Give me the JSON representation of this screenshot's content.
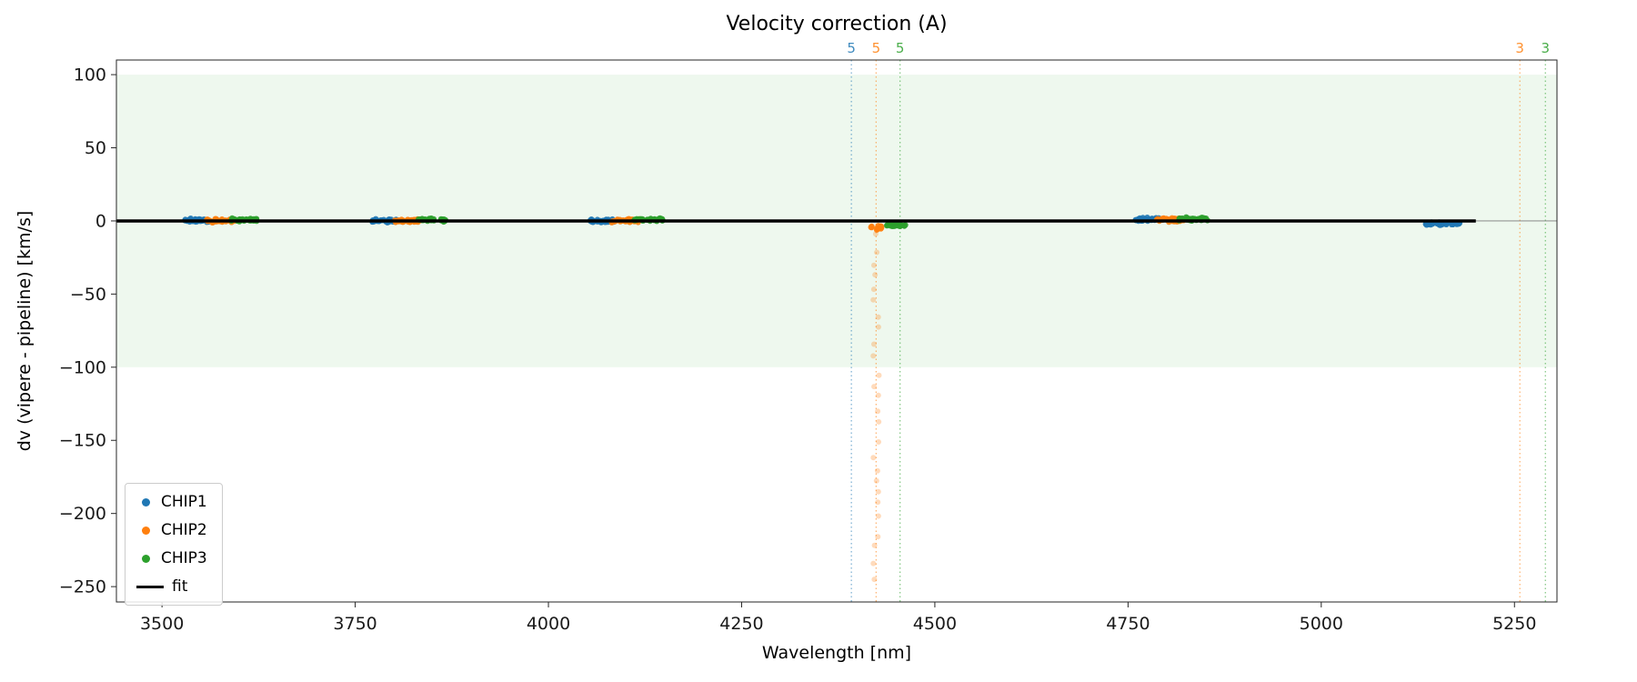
{
  "chart_data": {
    "type": "scatter",
    "title": "Velocity correction (A)",
    "xlabel": "Wavelength [nm]",
    "ylabel": "dv (vipere - pipeline) [km/s]",
    "xlim": [
      3441,
      5305
    ],
    "ylim": [
      -260.5,
      110
    ],
    "xticks": [
      3500,
      3750,
      4000,
      4250,
      4500,
      4750,
      5000,
      5250
    ],
    "yticks": [
      100,
      50,
      0,
      -50,
      -100,
      -150,
      -200,
      -250
    ],
    "grid": false,
    "legend_position": "lower left",
    "band": {
      "ymin": -100,
      "ymax": 100,
      "color": "rgba(44,160,44,0.08)"
    },
    "zero_line": {
      "y": 0,
      "color": "#7a7a7a",
      "width": 0.9
    },
    "fit_line": {
      "label": "fit",
      "y": 0,
      "color": "#000000",
      "width": 3.5,
      "x_from": 3441,
      "x_to": 5200
    },
    "series": [
      {
        "name": "CHIP1",
        "color": "#1f77b4",
        "clusters": [
          {
            "x0": 3528,
            "x1": 3562,
            "y": 0.4,
            "spread": 1.4,
            "n": 40
          },
          {
            "x0": 3772,
            "x1": 3806,
            "y": 0.2,
            "spread": 1.4,
            "n": 40
          },
          {
            "x0": 4054,
            "x1": 4088,
            "y": 0.0,
            "spread": 1.4,
            "n": 40
          },
          {
            "x0": 4758,
            "x1": 4792,
            "y": 1.0,
            "spread": 1.5,
            "n": 40
          },
          {
            "x0": 5130,
            "x1": 5180,
            "y": -1.8,
            "spread": 1.3,
            "n": 48
          }
        ]
      },
      {
        "name": "CHIP2",
        "color": "#ff7f0e",
        "clusters": [
          {
            "x0": 3556,
            "x1": 3594,
            "y": 0.2,
            "spread": 1.5,
            "n": 40
          },
          {
            "x0": 3801,
            "x1": 3838,
            "y": 0.0,
            "spread": 1.4,
            "n": 40
          },
          {
            "x0": 4082,
            "x1": 4118,
            "y": 0.2,
            "spread": 1.4,
            "n": 40
          },
          {
            "x0": 4417,
            "x1": 4431,
            "y": -5.0,
            "spread": 2.5,
            "n": 14
          },
          {
            "x0": 4786,
            "x1": 4822,
            "y": 0.6,
            "spread": 1.5,
            "n": 40
          }
        ]
      },
      {
        "name": "CHIP3",
        "color": "#2ca02c",
        "clusters": [
          {
            "x0": 3588,
            "x1": 3624,
            "y": 0.8,
            "spread": 1.3,
            "n": 40
          },
          {
            "x0": 3831,
            "x1": 3868,
            "y": 0.6,
            "spread": 1.3,
            "n": 40
          },
          {
            "x0": 4110,
            "x1": 4148,
            "y": 0.9,
            "spread": 1.3,
            "n": 40
          },
          {
            "x0": 4438,
            "x1": 4462,
            "y": -2.8,
            "spread": 1.2,
            "n": 30
          },
          {
            "x0": 4816,
            "x1": 4854,
            "y": 1.3,
            "spread": 1.4,
            "n": 40
          }
        ]
      }
    ],
    "outlier_column": {
      "series": "CHIP2",
      "color": "#ff7f0e",
      "x": 4424,
      "x_jitter": 4,
      "y_top": -10,
      "y_bottom": -242,
      "n": 26,
      "opacity": 0.28
    },
    "vlines": [
      {
        "x": 4392,
        "color": "#1f77b4",
        "label": "5"
      },
      {
        "x": 4424,
        "color": "#ff7f0e",
        "label": "5"
      },
      {
        "x": 4455,
        "color": "#2ca02c",
        "label": "5"
      },
      {
        "x": 5257,
        "color": "#ff7f0e",
        "label": "3"
      },
      {
        "x": 5290,
        "color": "#2ca02c",
        "label": "3"
      }
    ]
  }
}
